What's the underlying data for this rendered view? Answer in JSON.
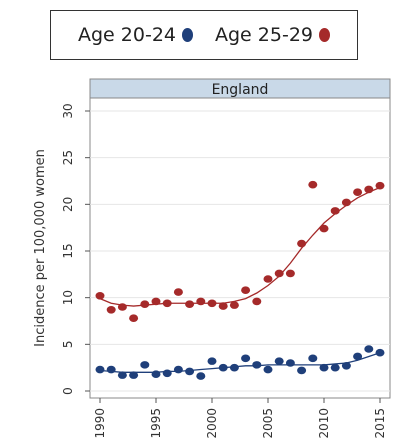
{
  "chart_data": {
    "type": "scatter",
    "panel_title": "England",
    "ylabel": "Incidence per 100,000 women",
    "xlabel": "",
    "xlim": [
      1990,
      2015
    ],
    "ylim": [
      0,
      30
    ],
    "x_ticks": [
      "1990",
      "1995",
      "2000",
      "2005",
      "2010",
      "2015"
    ],
    "y_ticks": [
      "0",
      "5",
      "10",
      "15",
      "20",
      "25",
      "30"
    ],
    "legend_position": "top",
    "grid": true,
    "x": [
      1990,
      1991,
      1992,
      1993,
      1994,
      1995,
      1996,
      1997,
      1998,
      1999,
      2000,
      2001,
      2002,
      2003,
      2004,
      2005,
      2006,
      2007,
      2008,
      2009,
      2010,
      2011,
      2012,
      2013,
      2014,
      2015
    ],
    "series": [
      {
        "name": "Age 20-24",
        "color": "#1f3f7a",
        "values": [
          2.3,
          2.3,
          1.7,
          1.7,
          2.8,
          1.8,
          1.9,
          2.3,
          2.1,
          1.6,
          3.2,
          2.5,
          2.5,
          3.5,
          2.8,
          2.3,
          3.2,
          3.0,
          2.2,
          3.5,
          2.5,
          2.5,
          2.7,
          3.7,
          4.5,
          4.1
        ],
        "trend": [
          2.2,
          2.1,
          2.0,
          2.0,
          2.0,
          2.0,
          2.1,
          2.1,
          2.2,
          2.3,
          2.4,
          2.5,
          2.6,
          2.7,
          2.7,
          2.8,
          2.8,
          2.8,
          2.8,
          2.8,
          2.8,
          2.9,
          3.0,
          3.3,
          3.7,
          4.1
        ]
      },
      {
        "name": "Age 25-29",
        "color": "#a52a2a",
        "values": [
          10.2,
          8.7,
          9.0,
          7.8,
          9.3,
          9.6,
          9.4,
          10.6,
          9.3,
          9.6,
          9.4,
          9.1,
          9.2,
          10.8,
          9.6,
          12.0,
          12.6,
          12.6,
          15.8,
          22.1,
          17.4,
          19.3,
          20.2,
          21.3,
          21.6,
          22.0
        ],
        "trend": [
          9.9,
          9.4,
          9.2,
          9.1,
          9.2,
          9.3,
          9.4,
          9.4,
          9.4,
          9.4,
          9.4,
          9.4,
          9.6,
          9.9,
          10.5,
          11.3,
          12.3,
          13.7,
          15.3,
          16.7,
          18.0,
          19.0,
          19.9,
          20.7,
          21.3,
          21.8
        ]
      }
    ]
  },
  "legend": {
    "items": [
      {
        "label": "Age 20-24",
        "icon": "dot-icon",
        "color": "#1f3f7a"
      },
      {
        "label": "Age 25-29",
        "icon": "dot-icon",
        "color": "#a52a2a"
      }
    ]
  }
}
